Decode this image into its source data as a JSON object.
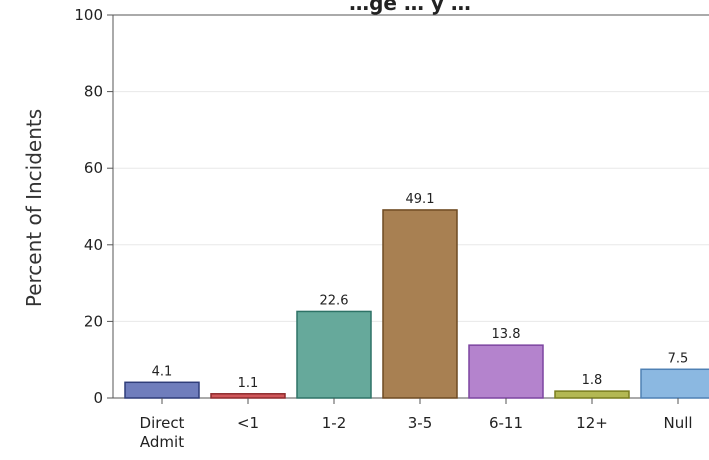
{
  "chart_data": {
    "type": "bar",
    "title": "…ge … y …",
    "xlabel": "",
    "ylabel": "Percent of Incidents",
    "ylim": [
      0,
      100
    ],
    "yticks": [
      0,
      20,
      40,
      60,
      80,
      100
    ],
    "grid": true,
    "categories": [
      [
        "Direct",
        "Admit"
      ],
      [
        "<1"
      ],
      [
        "1-2"
      ],
      [
        "3-5"
      ],
      [
        "6-11"
      ],
      [
        "12+"
      ],
      [
        "Null"
      ]
    ],
    "values": [
      4.1,
      1.1,
      22.6,
      49.1,
      13.8,
      1.8,
      7.5
    ],
    "data_labels": [
      "4.1",
      "1.1",
      "22.6",
      "49.1",
      "13.8",
      "1.8",
      "7.5"
    ],
    "colors": {
      "fill": [
        "#6f7dbc",
        "#d0575a",
        "#66a99b",
        "#a88052",
        "#b483cd",
        "#b3b853",
        "#8bb8e1"
      ],
      "stroke": [
        "#2f3d7a",
        "#8e2b2e",
        "#2e7266",
        "#6e4a22",
        "#7d45a0",
        "#7a7e1f",
        "#4f81b4"
      ],
      "grid": "#e8e8e8",
      "axis": "#555555"
    }
  }
}
